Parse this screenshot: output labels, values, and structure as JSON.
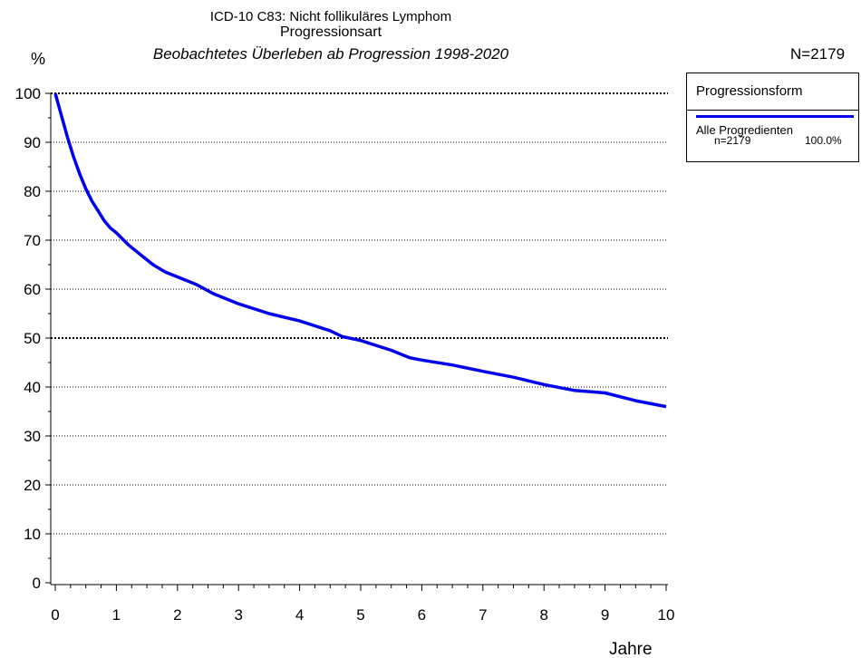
{
  "chart_data": {
    "type": "line",
    "title": "ICD-10 C83: Nicht follikuläres Lymphom",
    "subtitle": "Progressionsart",
    "subtitle2": "Beobachtetes Überleben ab Progression 1998-2020",
    "total_n_label": "N=2179",
    "ylabel": "%",
    "xlabel": "Jahre",
    "xlim": [
      0,
      10
    ],
    "ylim": [
      0,
      100
    ],
    "xticks": [
      "0",
      "1",
      "2",
      "3",
      "4",
      "5",
      "6",
      "7",
      "8",
      "9",
      "10"
    ],
    "yticks": [
      "0",
      "10",
      "20",
      "30",
      "40",
      "50",
      "60",
      "70",
      "80",
      "90",
      "100"
    ],
    "grid": "horizontal dotted",
    "legend": {
      "title": "Progressionsform",
      "placement": "right",
      "entries": [
        {
          "label": "Alle Progredienten",
          "n": "n=2179",
          "pct": "100.0%",
          "color": "#0000ee"
        }
      ]
    },
    "series": [
      {
        "name": "Alle Progredienten",
        "color": "#0000ee",
        "x": [
          0,
          0.1,
          0.2,
          0.3,
          0.4,
          0.5,
          0.6,
          0.7,
          0.8,
          0.9,
          1.0,
          1.2,
          1.4,
          1.6,
          1.8,
          2.0,
          2.3,
          2.6,
          3.0,
          3.5,
          4.0,
          4.5,
          4.7,
          5.0,
          5.5,
          5.8,
          6.0,
          6.5,
          7.0,
          7.5,
          8.0,
          8.5,
          9.0,
          9.5,
          10.0
        ],
        "y": [
          100,
          95.5,
          91,
          87,
          83.5,
          80.5,
          78,
          76,
          74,
          72.5,
          71.5,
          69,
          67,
          65,
          63.5,
          62.5,
          61,
          59,
          57,
          55,
          53.5,
          51.5,
          50.3,
          49.5,
          47.5,
          46,
          45.5,
          44.5,
          43.2,
          42,
          40.5,
          39.3,
          38.8,
          37.2,
          36
        ]
      }
    ]
  }
}
